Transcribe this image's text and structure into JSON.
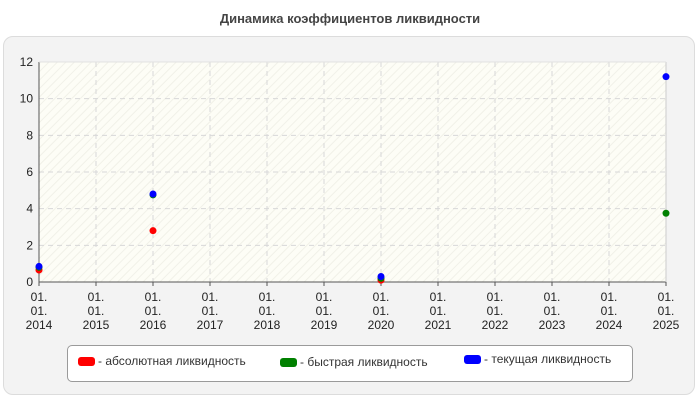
{
  "chart_data": {
    "type": "scatter",
    "title": "Динамика коэффициентов ликвидности",
    "xlabel": "",
    "ylabel": "",
    "x": [
      "01.01.2014",
      "01.01.2016",
      "01.01.2020",
      "01.01.2025"
    ],
    "x_ticks": [
      [
        "01.",
        "01.",
        "2014"
      ],
      [
        "01.",
        "01.",
        "2015"
      ],
      [
        "01.",
        "01.",
        "2016"
      ],
      [
        "01.",
        "01.",
        "2017"
      ],
      [
        "01.",
        "01.",
        "2018"
      ],
      [
        "01.",
        "01.",
        "2019"
      ],
      [
        "01.",
        "01.",
        "2020"
      ],
      [
        "01.",
        "01.",
        "2021"
      ],
      [
        "01.",
        "01.",
        "2022"
      ],
      [
        "01.",
        "01.",
        "2023"
      ],
      [
        "01.",
        "01.",
        "2024"
      ],
      [
        "01.",
        "01.",
        "2025"
      ]
    ],
    "x_range": [
      "01.01.2014",
      "01.01.2025"
    ],
    "ylim": [
      0,
      12
    ],
    "y_ticks": [
      0,
      2,
      4,
      6,
      8,
      10,
      12
    ],
    "grid": true,
    "legend_position": "bottom",
    "series": [
      {
        "name": "- абсолютная ликвидность",
        "color": "#ff0000",
        "points": [
          {
            "x": "01.01.2014",
            "y": 0.65
          },
          {
            "x": "01.01.2016",
            "y": 2.8
          },
          {
            "x": "01.01.2020",
            "y": 0.1
          }
        ]
      },
      {
        "name": "- быстрая ликвидность",
        "color": "#008000",
        "points": [
          {
            "x": "01.01.2014",
            "y": 0.8
          },
          {
            "x": "01.01.2016",
            "y": 4.75
          },
          {
            "x": "01.01.2020",
            "y": 0.2
          },
          {
            "x": "01.01.2025",
            "y": 3.75
          }
        ]
      },
      {
        "name": "- текущая ликвидность",
        "color": "#0000ff",
        "points": [
          {
            "x": "01.01.2014",
            "y": 0.85
          },
          {
            "x": "01.01.2016",
            "y": 4.8
          },
          {
            "x": "01.01.2020",
            "y": 0.3
          },
          {
            "x": "01.01.2025",
            "y": 11.2
          }
        ]
      }
    ]
  }
}
